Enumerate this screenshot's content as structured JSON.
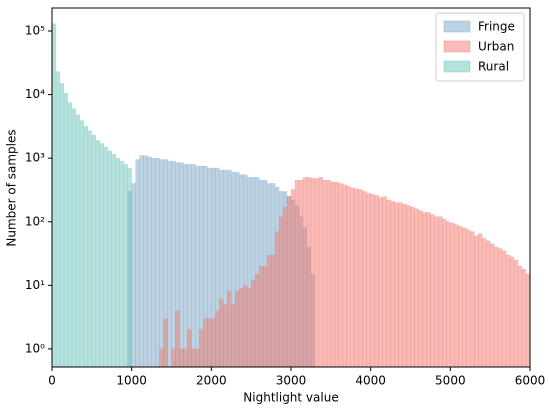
{
  "chart_data": {
    "type": "histogram",
    "x_label": "Nightlight value",
    "y_label": "Number of samples",
    "bins": [
      0,
      50,
      100,
      150,
      200,
      250,
      300,
      350,
      400,
      450,
      500,
      550,
      600,
      650,
      700,
      750,
      800,
      850,
      900,
      950,
      1000,
      1050,
      1100,
      1150,
      1200,
      1250,
      1300,
      1350,
      1400,
      1450,
      1500,
      1550,
      1600,
      1650,
      1700,
      1750,
      1800,
      1850,
      1900,
      1950,
      2000,
      2050,
      2100,
      2150,
      2200,
      2250,
      2300,
      2350,
      2400,
      2450,
      2500,
      2550,
      2600,
      2650,
      2700,
      2750,
      2800,
      2850,
      2900,
      2950,
      3000,
      3050,
      3100,
      3150,
      3200,
      3250,
      3300,
      3350,
      3400,
      3450,
      3500,
      3550,
      3600,
      3650,
      3700,
      3750,
      3800,
      3850,
      3900,
      3950,
      4000,
      4050,
      4100,
      4150,
      4200,
      4250,
      4300,
      4350,
      4400,
      4450,
      4500,
      4550,
      4600,
      4650,
      4700,
      4750,
      4800,
      4850,
      4900,
      4950,
      5000,
      5050,
      5100,
      5150,
      5200,
      5250,
      5300,
      5350,
      5400,
      5450,
      5500,
      5550,
      5600,
      5650,
      5700,
      5750,
      5800,
      5850,
      5900,
      5950,
      6000
    ],
    "series": [
      {
        "name": "Fringe",
        "color": "#7aa6c8",
        "values": [
          null,
          null,
          null,
          null,
          null,
          null,
          null,
          null,
          null,
          null,
          null,
          null,
          null,
          null,
          null,
          null,
          null,
          null,
          null,
          300,
          400,
          950,
          1100,
          1100,
          1050,
          1000,
          1000,
          950,
          950,
          900,
          900,
          850,
          850,
          800,
          800,
          800,
          750,
          750,
          750,
          700,
          700,
          700,
          650,
          650,
          650,
          600,
          600,
          550,
          550,
          500,
          500,
          500,
          450,
          450,
          400,
          400,
          350,
          300,
          300,
          250,
          220,
          180,
          120,
          80,
          40,
          15,
          null,
          null,
          null,
          null,
          null,
          null,
          null,
          null,
          null,
          null,
          null,
          null,
          null,
          null,
          null,
          null,
          null,
          null,
          null,
          null,
          null,
          null,
          null,
          null,
          null,
          null,
          null,
          null,
          null,
          null,
          null,
          null,
          null,
          null,
          null,
          null,
          null,
          null,
          null,
          null,
          null,
          null,
          null,
          null,
          null,
          null,
          null,
          null,
          null,
          null,
          null,
          null,
          null,
          null
        ]
      },
      {
        "name": "Urban",
        "color": "#f07a70",
        "values": [
          null,
          null,
          null,
          null,
          null,
          null,
          null,
          null,
          null,
          null,
          null,
          null,
          null,
          null,
          null,
          null,
          null,
          null,
          null,
          null,
          null,
          null,
          null,
          null,
          null,
          null,
          null,
          1,
          3,
          null,
          1,
          4,
          1,
          1,
          2,
          1,
          1,
          2,
          3,
          3,
          3,
          4,
          6,
          5,
          8,
          5,
          8,
          9,
          10,
          9,
          12,
          15,
          20,
          20,
          30,
          30,
          70,
          120,
          170,
          250,
          320,
          450,
          450,
          500,
          500,
          480,
          480,
          500,
          450,
          450,
          420,
          420,
          400,
          380,
          360,
          340,
          330,
          320,
          300,
          280,
          270,
          260,
          240,
          250,
          220,
          210,
          200,
          200,
          190,
          180,
          170,
          160,
          150,
          140,
          140,
          130,
          120,
          120,
          110,
          100,
          95,
          90,
          85,
          80,
          75,
          70,
          60,
          65,
          55,
          50,
          45,
          40,
          38,
          35,
          30,
          28,
          25,
          20,
          18,
          15
        ]
      },
      {
        "name": "Rural",
        "color": "#6cc6bb",
        "values": [
          130000,
          23000,
          15000,
          10500,
          7500,
          6000,
          4800,
          3900,
          3200,
          2700,
          2300,
          1900,
          1700,
          1500,
          1300,
          1150,
          1000,
          900,
          800,
          700,
          null,
          null,
          null,
          null,
          null,
          null,
          null,
          null,
          null,
          null,
          null,
          null,
          null,
          null,
          null,
          null,
          null,
          null,
          null,
          null,
          null,
          null,
          null,
          null,
          null,
          null,
          null,
          null,
          null,
          null,
          null,
          null,
          null,
          null,
          null,
          null,
          null,
          null,
          null,
          null,
          null,
          null,
          null,
          null,
          null,
          null,
          null,
          null,
          null,
          null,
          null,
          null,
          null,
          null,
          null,
          null,
          null,
          null,
          null,
          null,
          null,
          null,
          null,
          null,
          null,
          null,
          null,
          null,
          null,
          null,
          null,
          null,
          null,
          null,
          null,
          null,
          null,
          null,
          null,
          null,
          null,
          null,
          null,
          null,
          null,
          null,
          null,
          null,
          null,
          null,
          null,
          null,
          null,
          null,
          null,
          null,
          null,
          null,
          null,
          null
        ]
      }
    ],
    "xlim": [
      0,
      6000
    ],
    "xticks": [
      0,
      1000,
      2000,
      3000,
      4000,
      5000,
      6000
    ],
    "ylim": [
      0.52,
      230000
    ],
    "y_log": true,
    "yticks": [
      {
        "value": 1,
        "label": "10⁰"
      },
      {
        "value": 10,
        "label": "10¹"
      },
      {
        "value": 100,
        "label": "10²"
      },
      {
        "value": 1000,
        "label": "10³"
      },
      {
        "value": 10000,
        "label": "10⁴"
      },
      {
        "value": 100000,
        "label": "10⁵"
      }
    ],
    "legend": "upper right"
  }
}
